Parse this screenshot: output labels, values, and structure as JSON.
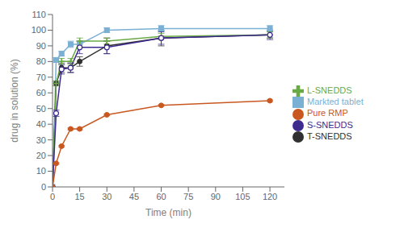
{
  "chart_data": {
    "type": "line",
    "xlabel": "Time (min)",
    "ylabel": "drug in solution (%)",
    "x": [
      0,
      2,
      5,
      10,
      15,
      30,
      60,
      120
    ],
    "series": [
      {
        "name": "Markted tablet",
        "color": "#7ab0d4",
        "marker": "square",
        "values": [
          0,
          81,
          85,
          91,
          91,
          100,
          101,
          101
        ],
        "errors": [
          0,
          1.5,
          1.5,
          2,
          2,
          1.5,
          2,
          2
        ]
      },
      {
        "name": "T-SNEDDS",
        "color": "#303030",
        "marker": "circle",
        "values": [
          0,
          66,
          76,
          76,
          80,
          90,
          95,
          97
        ],
        "errors": [
          0,
          1.5,
          3,
          3,
          3,
          5,
          5,
          2
        ]
      },
      {
        "name": "L-SNEDDS",
        "color": "#6aaa45",
        "marker": "plus",
        "values": [
          0,
          66,
          80,
          80,
          93,
          93,
          96,
          97
        ],
        "errors": [
          0,
          1.5,
          2,
          2,
          2,
          2,
          2,
          2
        ]
      },
      {
        "name": "S-SNEDDS",
        "color": "#3d2b8e",
        "marker": "open_circle",
        "values": [
          0,
          47,
          75,
          76,
          89,
          89,
          95,
          97
        ],
        "errors": [
          0,
          2,
          3,
          3,
          4,
          4,
          4,
          3
        ]
      },
      {
        "name": "Pure RMP",
        "color": "#c85820",
        "marker": "circle",
        "values": [
          0,
          15,
          26,
          37,
          37,
          46,
          52,
          55
        ],
        "errors": [
          0,
          0.5,
          0.5,
          0.5,
          0.5,
          0.5,
          0.5,
          0.5
        ]
      }
    ],
    "xlim": [
      0,
      128
    ],
    "ylim": [
      0,
      110
    ],
    "xticks": [
      0,
      15,
      30,
      45,
      60,
      75,
      90,
      105,
      120
    ],
    "yticks": [
      0,
      10,
      20,
      30,
      40,
      50,
      60,
      70,
      80,
      90,
      100,
      110
    ],
    "grid": false,
    "legend": "right"
  }
}
